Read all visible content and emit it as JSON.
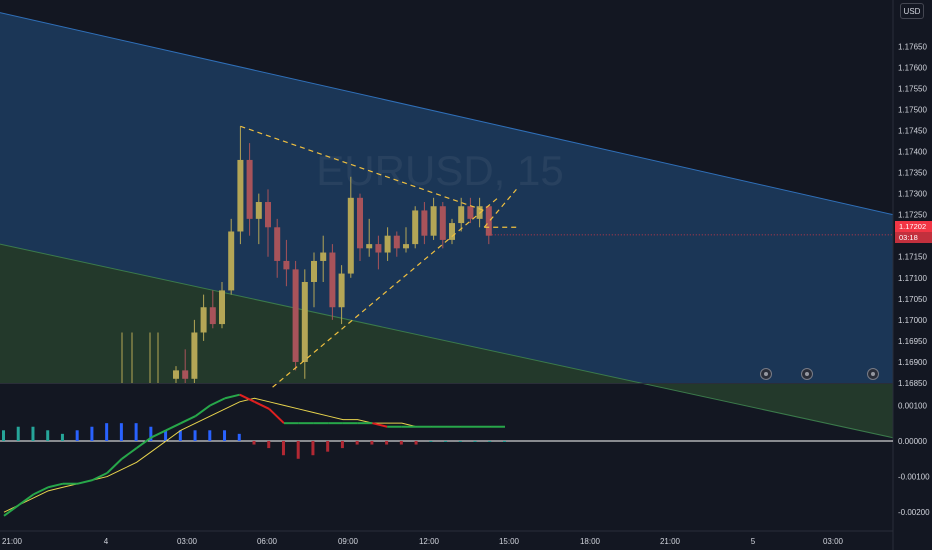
{
  "chart_data": [
    {
      "type": "candlestick",
      "title": "",
      "symbol_watermark": "EURUSD, 15",
      "currency_label": "USD",
      "last_price_label": "1.17202",
      "countdown_label": "03:18",
      "y_ticks": [
        "1.17650",
        "1.17600",
        "1.17550",
        "1.17500",
        "1.17450",
        "1.17400",
        "1.17350",
        "1.17300",
        "1.17250",
        "1.17150",
        "1.17100",
        "1.17050",
        "1.17000",
        "1.16950",
        "1.16900",
        "1.16850"
      ],
      "x_ticks": [
        "21:00",
        "4",
        "03:00",
        "06:00",
        "09:00",
        "12:00",
        "15:00",
        "18:00",
        "21:00",
        "5",
        "03:00"
      ],
      "ylim": [
        1.1685,
        1.1776
      ],
      "last_price": 1.17202,
      "colors": {
        "up": "#b4a656",
        "down": "#a8535a",
        "last_price": "#f23645",
        "channel_upper": "#1e3a5f",
        "channel_lower": "#233b2e",
        "triangle": "#f0c040"
      },
      "candles": [
        {
          "o": 1.1686,
          "h": 1.1689,
          "l": 1.1685,
          "c": 1.1688
        },
        {
          "o": 1.1688,
          "h": 1.1693,
          "l": 1.1685,
          "c": 1.1686
        },
        {
          "o": 1.1686,
          "h": 1.17,
          "l": 1.1685,
          "c": 1.1697
        },
        {
          "o": 1.1697,
          "h": 1.1706,
          "l": 1.1695,
          "c": 1.1703
        },
        {
          "o": 1.1703,
          "h": 1.1707,
          "l": 1.1698,
          "c": 1.1699
        },
        {
          "o": 1.1699,
          "h": 1.1709,
          "l": 1.1698,
          "c": 1.1707
        },
        {
          "o": 1.1707,
          "h": 1.1724,
          "l": 1.1706,
          "c": 1.1721
        },
        {
          "o": 1.1721,
          "h": 1.1746,
          "l": 1.1718,
          "c": 1.1738
        },
        {
          "o": 1.1738,
          "h": 1.1742,
          "l": 1.172,
          "c": 1.1724
        },
        {
          "o": 1.1724,
          "h": 1.173,
          "l": 1.1718,
          "c": 1.1728
        },
        {
          "o": 1.1728,
          "h": 1.1731,
          "l": 1.1715,
          "c": 1.1722
        },
        {
          "o": 1.1722,
          "h": 1.1724,
          "l": 1.171,
          "c": 1.1714
        },
        {
          "o": 1.1714,
          "h": 1.1719,
          "l": 1.1708,
          "c": 1.1712
        },
        {
          "o": 1.1712,
          "h": 1.1714,
          "l": 1.1688,
          "c": 1.169
        },
        {
          "o": 1.169,
          "h": 1.1712,
          "l": 1.1686,
          "c": 1.1709
        },
        {
          "o": 1.1709,
          "h": 1.1716,
          "l": 1.1703,
          "c": 1.1714
        },
        {
          "o": 1.1714,
          "h": 1.172,
          "l": 1.1709,
          "c": 1.1716
        },
        {
          "o": 1.1716,
          "h": 1.1718,
          "l": 1.17,
          "c": 1.1703
        },
        {
          "o": 1.1703,
          "h": 1.1713,
          "l": 1.1699,
          "c": 1.1711
        },
        {
          "o": 1.1711,
          "h": 1.1734,
          "l": 1.171,
          "c": 1.1729
        },
        {
          "o": 1.1729,
          "h": 1.173,
          "l": 1.1714,
          "c": 1.1717
        },
        {
          "o": 1.1717,
          "h": 1.1724,
          "l": 1.1715,
          "c": 1.1718
        },
        {
          "o": 1.1718,
          "h": 1.172,
          "l": 1.1712,
          "c": 1.1716
        },
        {
          "o": 1.1716,
          "h": 1.1722,
          "l": 1.1714,
          "c": 1.172
        },
        {
          "o": 1.172,
          "h": 1.1721,
          "l": 1.1715,
          "c": 1.1717
        },
        {
          "o": 1.1717,
          "h": 1.1722,
          "l": 1.1716,
          "c": 1.1718
        },
        {
          "o": 1.1718,
          "h": 1.1727,
          "l": 1.1717,
          "c": 1.1726
        },
        {
          "o": 1.1726,
          "h": 1.1728,
          "l": 1.1718,
          "c": 1.172
        },
        {
          "o": 1.172,
          "h": 1.1729,
          "l": 1.1719,
          "c": 1.1727
        },
        {
          "o": 1.1727,
          "h": 1.1728,
          "l": 1.1717,
          "c": 1.1719
        },
        {
          "o": 1.1719,
          "h": 1.1724,
          "l": 1.1718,
          "c": 1.1723
        },
        {
          "o": 1.1723,
          "h": 1.1729,
          "l": 1.1721,
          "c": 1.1727
        },
        {
          "o": 1.1727,
          "h": 1.1729,
          "l": 1.1723,
          "c": 1.1724
        },
        {
          "o": 1.1724,
          "h": 1.1729,
          "l": 1.1722,
          "c": 1.1727
        },
        {
          "o": 1.1727,
          "h": 1.1727,
          "l": 1.1718,
          "c": 1.172
        }
      ],
      "channel": {
        "upper_start": 1.1773,
        "upper_end": 1.1725,
        "mid_start": 1.1718,
        "mid_end": 1.1672,
        "note": "parallel descending channel"
      },
      "triangle_lines": [
        {
          "from_index": 7,
          "from": 1.1746,
          "to_index": 33.5,
          "to": 1.1726
        },
        {
          "from_index": 10.5,
          "from": 1.1684,
          "to_index": 35,
          "to": 1.1729
        }
      ]
    },
    {
      "type": "macd",
      "y_ticks": [
        "0.00100",
        "0.00000",
        "-0.00100",
        "-0.00200"
      ],
      "ylim": [
        -0.0025,
        0.0016
      ],
      "macd": [
        -0.0021,
        -0.0018,
        -0.0015,
        -0.0013,
        -0.0012,
        -0.0012,
        -0.0011,
        -0.0009,
        -0.0005,
        -0.0002,
        0.0001,
        0.0003,
        0.0005,
        0.0007,
        0.001,
        0.0012,
        0.0013,
        0.0011,
        0.0009,
        0.0005,
        0.0005,
        0.0005,
        0.0005,
        0.0005,
        0.0005,
        0.0005,
        0.0004,
        0.0004,
        0.0004,
        0.0004,
        0.0004,
        0.0004,
        0.0004,
        0.0004,
        0.0004
      ],
      "signal": [
        -0.002,
        -0.0018,
        -0.0016,
        -0.0014,
        -0.0013,
        -0.0012,
        -0.0011,
        -0.001,
        -0.0008,
        -0.0006,
        -0.0003,
        0.0,
        0.0003,
        0.0005,
        0.0007,
        0.0009,
        0.0011,
        0.0012,
        0.0011,
        0.001,
        0.0009,
        0.0008,
        0.0007,
        0.0006,
        0.0006,
        0.0005,
        0.0005,
        0.0005,
        0.0004,
        0.0004,
        0.0004,
        0.0004,
        0.0004,
        0.0004,
        0.0004
      ],
      "histogram": [
        0.0003,
        0.0004,
        0.0004,
        0.0003,
        0.0002,
        0.0003,
        0.0004,
        0.0005,
        0.0005,
        0.0005,
        0.0004,
        0.0003,
        0.0003,
        0.0003,
        0.0003,
        0.0003,
        0.0002,
        -0.0001,
        -0.0002,
        -0.0004,
        -0.0005,
        -0.0004,
        -0.0003,
        -0.0002,
        -0.0001,
        -0.0001,
        -0.0001,
        -0.0001,
        -0.0001,
        0.0,
        0.0,
        0.0,
        0.0,
        0.0,
        0.0
      ],
      "colors": {
        "macd": "#27a74a",
        "macd_down": "#e02020",
        "signal": "#e8d44d",
        "hist_up": "#26a69a",
        "hist_blue": "#2962ff",
        "hist_down": "#b22833"
      }
    }
  ],
  "events": [
    {
      "name": "event-icon-1"
    },
    {
      "name": "event-icon-2"
    },
    {
      "name": "event-icon-3"
    }
  ]
}
